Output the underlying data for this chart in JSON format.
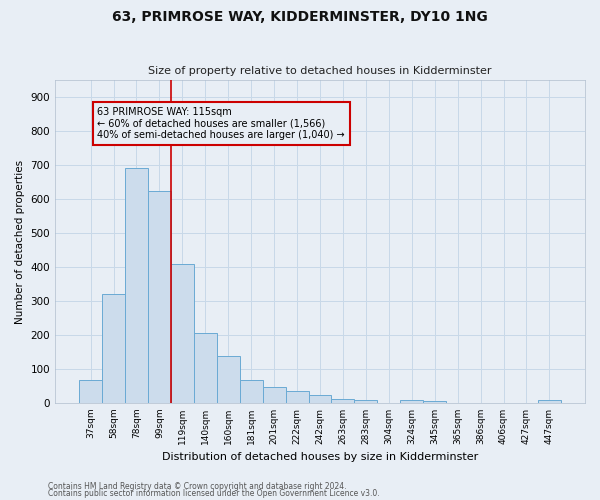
{
  "title": "63, PRIMROSE WAY, KIDDERMINSTER, DY10 1NG",
  "subtitle": "Size of property relative to detached houses in Kidderminster",
  "xlabel": "Distribution of detached houses by size in Kidderminster",
  "ylabel": "Number of detached properties",
  "footnote1": "Contains HM Land Registry data © Crown copyright and database right 2024.",
  "footnote2": "Contains public sector information licensed under the Open Government Licence v3.0.",
  "bin_labels": [
    "37sqm",
    "58sqm",
    "78sqm",
    "99sqm",
    "119sqm",
    "140sqm",
    "160sqm",
    "181sqm",
    "201sqm",
    "222sqm",
    "242sqm",
    "263sqm",
    "283sqm",
    "304sqm",
    "324sqm",
    "345sqm",
    "365sqm",
    "386sqm",
    "406sqm",
    "427sqm",
    "447sqm"
  ],
  "bar_values": [
    67,
    320,
    690,
    625,
    410,
    205,
    137,
    67,
    47,
    35,
    22,
    13,
    8,
    0,
    8,
    5,
    0,
    0,
    0,
    0,
    8
  ],
  "bar_color": "#ccdcec",
  "bar_edge_color": "#6aaad4",
  "vline_color": "#cc0000",
  "annotation_text": "63 PRIMROSE WAY: 115sqm\n← 60% of detached houses are smaller (1,566)\n40% of semi-detached houses are larger (1,040) →",
  "annotation_box_edgecolor": "#cc0000",
  "ylim": [
    0,
    950
  ],
  "yticks": [
    0,
    100,
    200,
    300,
    400,
    500,
    600,
    700,
    800,
    900
  ],
  "grid_color": "#c8d8e8",
  "bg_color": "#e8eef5"
}
